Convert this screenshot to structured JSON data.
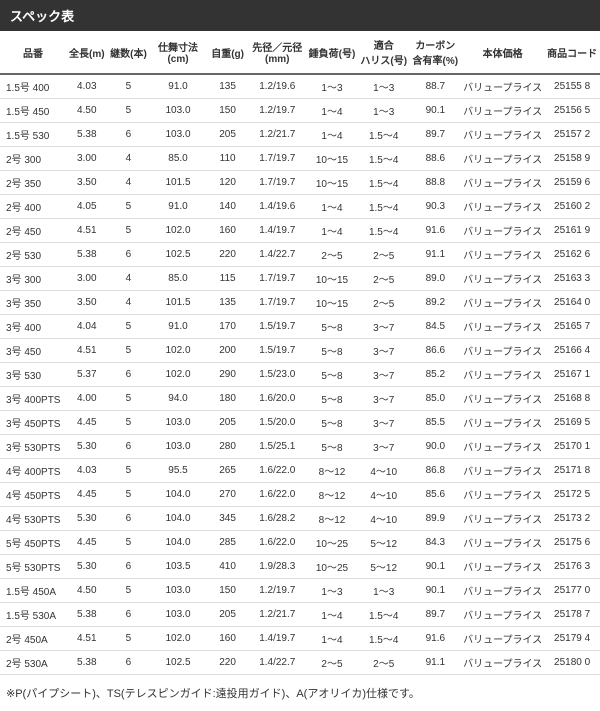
{
  "title": "スペック表",
  "table": {
    "columns": [
      "品番",
      "全長(m)",
      "継数(本)",
      "仕舞寸法(cm)",
      "自重(g)",
      "先径／元径\n(mm)",
      "錘負荷(号)",
      "適合\nハリス(号)",
      "カーボン\n含有率(%)",
      "本体価格",
      "商品コード"
    ],
    "col_widths": [
      "62",
      "38",
      "38",
      "54",
      "38",
      "54",
      "48",
      "48",
      "48",
      "72",
      "52"
    ],
    "rows": [
      [
        "1.5号 400",
        "4.03",
        "5",
        "91.0",
        "135",
        "1.2/19.6",
        "1～3",
        "1～3",
        "88.7",
        "バリュープライス",
        "25155 8"
      ],
      [
        "1.5号 450",
        "4.50",
        "5",
        "103.0",
        "150",
        "1.2/19.7",
        "1～4",
        "1～3",
        "90.1",
        "バリュープライス",
        "25156 5"
      ],
      [
        "1.5号 530",
        "5.38",
        "6",
        "103.0",
        "205",
        "1.2/21.7",
        "1～4",
        "1.5～4",
        "89.7",
        "バリュープライス",
        "25157 2"
      ],
      [
        "2号 300",
        "3.00",
        "4",
        "85.0",
        "110",
        "1.7/19.7",
        "10～15",
        "1.5～4",
        "88.6",
        "バリュープライス",
        "25158 9"
      ],
      [
        "2号 350",
        "3.50",
        "4",
        "101.5",
        "120",
        "1.7/19.7",
        "10～15",
        "1.5～4",
        "88.8",
        "バリュープライス",
        "25159 6"
      ],
      [
        "2号 400",
        "4.05",
        "5",
        "91.0",
        "140",
        "1.4/19.6",
        "1～4",
        "1.5～4",
        "90.3",
        "バリュープライス",
        "25160 2"
      ],
      [
        "2号 450",
        "4.51",
        "5",
        "102.0",
        "160",
        "1.4/19.7",
        "1～4",
        "1.5～4",
        "91.6",
        "バリュープライス",
        "25161 9"
      ],
      [
        "2号 530",
        "5.38",
        "6",
        "102.5",
        "220",
        "1.4/22.7",
        "2～5",
        "2～5",
        "91.1",
        "バリュープライス",
        "25162 6"
      ],
      [
        "3号 300",
        "3.00",
        "4",
        "85.0",
        "115",
        "1.7/19.7",
        "10～15",
        "2～5",
        "89.0",
        "バリュープライス",
        "25163 3"
      ],
      [
        "3号 350",
        "3.50",
        "4",
        "101.5",
        "135",
        "1.7/19.7",
        "10～15",
        "2～5",
        "89.2",
        "バリュープライス",
        "25164 0"
      ],
      [
        "3号 400",
        "4.04",
        "5",
        "91.0",
        "170",
        "1.5/19.7",
        "5～8",
        "3～7",
        "84.5",
        "バリュープライス",
        "25165 7"
      ],
      [
        "3号 450",
        "4.51",
        "5",
        "102.0",
        "200",
        "1.5/19.7",
        "5～8",
        "3～7",
        "86.6",
        "バリュープライス",
        "25166 4"
      ],
      [
        "3号 530",
        "5.37",
        "6",
        "102.0",
        "290",
        "1.5/23.0",
        "5～8",
        "3～7",
        "85.2",
        "バリュープライス",
        "25167 1"
      ],
      [
        "3号 400PTS",
        "4.00",
        "5",
        "94.0",
        "180",
        "1.6/20.0",
        "5～8",
        "3～7",
        "85.0",
        "バリュープライス",
        "25168 8"
      ],
      [
        "3号 450PTS",
        "4.45",
        "5",
        "103.0",
        "205",
        "1.5/20.0",
        "5～8",
        "3～7",
        "85.5",
        "バリュープライス",
        "25169 5"
      ],
      [
        "3号 530PTS",
        "5.30",
        "6",
        "103.0",
        "280",
        "1.5/25.1",
        "5～8",
        "3～7",
        "90.0",
        "バリュープライス",
        "25170 1"
      ],
      [
        "4号 400PTS",
        "4.03",
        "5",
        "95.5",
        "265",
        "1.6/22.0",
        "8～12",
        "4～10",
        "86.8",
        "バリュープライス",
        "25171 8"
      ],
      [
        "4号 450PTS",
        "4.45",
        "5",
        "104.0",
        "270",
        "1.6/22.0",
        "8～12",
        "4～10",
        "85.6",
        "バリュープライス",
        "25172 5"
      ],
      [
        "4号 530PTS",
        "5.30",
        "6",
        "104.0",
        "345",
        "1.6/28.2",
        "8～12",
        "4～10",
        "89.9",
        "バリュープライス",
        "25173 2"
      ],
      [
        "5号 450PTS",
        "4.45",
        "5",
        "104.0",
        "285",
        "1.6/22.0",
        "10～25",
        "5～12",
        "84.3",
        "バリュープライス",
        "25175 6"
      ],
      [
        "5号 530PTS",
        "5.30",
        "6",
        "103.5",
        "410",
        "1.9/28.3",
        "10～25",
        "5～12",
        "90.1",
        "バリュープライス",
        "25176 3"
      ],
      [
        "1.5号 450A",
        "4.50",
        "5",
        "103.0",
        "150",
        "1.2/19.7",
        "1～3",
        "1～3",
        "90.1",
        "バリュープライス",
        "25177 0"
      ],
      [
        "1.5号 530A",
        "5.38",
        "6",
        "103.0",
        "205",
        "1.2/21.7",
        "1～4",
        "1.5～4",
        "89.7",
        "バリュープライス",
        "25178 7"
      ],
      [
        "2号 450A",
        "4.51",
        "5",
        "102.0",
        "160",
        "1.4/19.7",
        "1～4",
        "1.5～4",
        "91.6",
        "バリュープライス",
        "25179 4"
      ],
      [
        "2号 530A",
        "5.38",
        "6",
        "102.5",
        "220",
        "1.4/22.7",
        "2～5",
        "2～5",
        "91.1",
        "バリュープライス",
        "25180 0"
      ]
    ]
  },
  "footnote": "※P(パイプシート)、TS(テレスピンガイド:遠投用ガイド)、A(アオリイカ)仕様です。"
}
